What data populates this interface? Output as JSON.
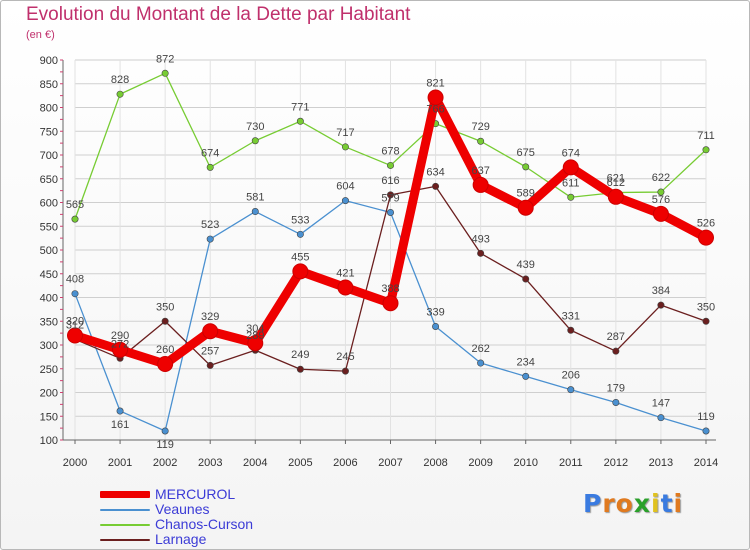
{
  "title": "Evolution du Montant de la Dette par Habitant",
  "subtitle": "(en €)",
  "chart_data": {
    "type": "line",
    "title": "Evolution du Montant de la Dette par Habitant",
    "subtitle": "(en €)",
    "xlabel": "",
    "ylabel": "",
    "x": [
      "2000",
      "2001",
      "2002",
      "2003",
      "2004",
      "2005",
      "2006",
      "2007",
      "2008",
      "2009",
      "2010",
      "2011",
      "2012",
      "2013",
      "2014"
    ],
    "ylim": [
      100,
      900
    ],
    "yticks": [
      100,
      150,
      200,
      250,
      300,
      350,
      400,
      450,
      500,
      550,
      600,
      650,
      700,
      750,
      800,
      850,
      900
    ],
    "grid": true,
    "legend_position": "bottom-left",
    "series": [
      {
        "name": "MERCUROL",
        "color": "#ee0000",
        "values": [
          320,
          290,
          260,
          329,
          304,
          455,
          421,
          388,
          821,
          637,
          589,
          674,
          612,
          576,
          526
        ]
      },
      {
        "name": "Veaunes",
        "color": "#4a90d0",
        "values": [
          408,
          161,
          119,
          523,
          581,
          533,
          604,
          579,
          339,
          262,
          234,
          206,
          179,
          147,
          119
        ]
      },
      {
        "name": "Chanos-Curson",
        "color": "#77cc33",
        "values": [
          565,
          828,
          872,
          674,
          730,
          771,
          717,
          678,
          766,
          729,
          675,
          611,
          621,
          622,
          711
        ]
      },
      {
        "name": "Larnage",
        "color": "#6b1f1f",
        "values": [
          312,
          272,
          350,
          257,
          289,
          249,
          245,
          616,
          634,
          493,
          439,
          331,
          287,
          384,
          350
        ]
      }
    ]
  },
  "legend": {
    "items": [
      "MERCUROL",
      "Veaunes",
      "Chanos-Curson",
      "Larnage"
    ]
  },
  "logo": {
    "letters": [
      "P",
      "r",
      "o",
      "x",
      "i",
      "t",
      "i"
    ],
    "colors": [
      "#3a7be0",
      "#e07a1f",
      "#e07a1f",
      "#2aa02a",
      "#e0c21f",
      "#3a7be0",
      "#e07a1f"
    ]
  }
}
